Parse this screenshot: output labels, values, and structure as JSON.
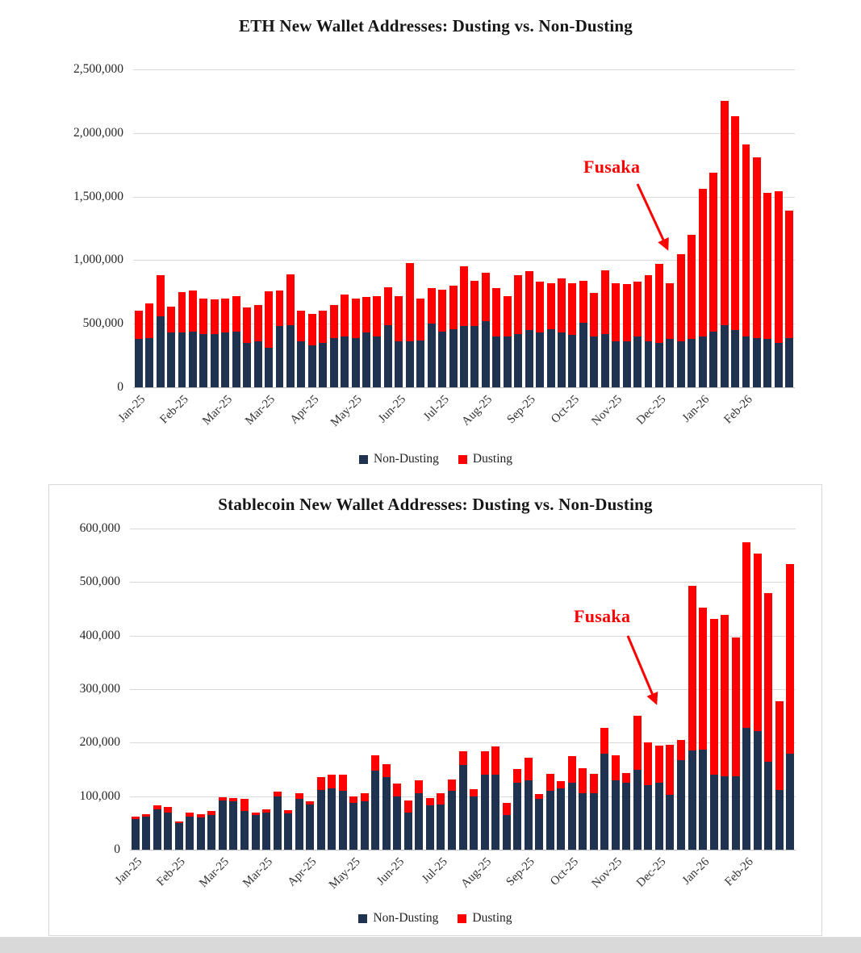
{
  "page": {
    "background": "#ffffff"
  },
  "chart_data": [
    {
      "type": "bar",
      "stacked": true,
      "title": "ETH New Wallet Addresses: Dusting vs. Non-Dusting",
      "ylim": [
        0,
        2500000
      ],
      "grid": true,
      "legend_position": "bottom",
      "ytick_labels": [
        "0",
        "500,000",
        "1,000,000",
        "1,500,000",
        "2,000,000",
        "2,500,000"
      ],
      "xtick_every": 4,
      "xtick_labels": [
        "Jan-25",
        "Feb-25",
        "Mar-25",
        "Mar-25",
        "Apr-25",
        "May-25",
        "Jun-25",
        "Jul-25",
        "Aug-25",
        "Sep-25",
        "Oct-25",
        "Nov-25",
        "Dec-25",
        "Jan-26",
        "Feb-26"
      ],
      "annotation": {
        "text": "Fusaka",
        "color": "#fe0000"
      },
      "legend": [
        {
          "label": "Non-Dusting",
          "color": "#1f3250"
        },
        {
          "label": "Dusting",
          "color": "#fe0000"
        }
      ],
      "series": [
        {
          "name": "Non-Dusting",
          "color": "#1f3250",
          "values": [
            380000,
            390000,
            560000,
            430000,
            430000,
            440000,
            420000,
            420000,
            430000,
            440000,
            350000,
            360000,
            310000,
            480000,
            490000,
            360000,
            330000,
            350000,
            390000,
            400000,
            390000,
            430000,
            400000,
            490000,
            360000,
            360000,
            370000,
            500000,
            440000,
            460000,
            480000,
            480000,
            520000,
            400000,
            400000,
            420000,
            450000,
            430000,
            460000,
            430000,
            410000,
            510000,
            400000,
            420000,
            360000,
            360000,
            400000,
            360000,
            350000,
            380000,
            360000,
            380000,
            400000,
            440000,
            490000,
            450000,
            400000,
            390000,
            380000,
            350000,
            390000
          ]
        },
        {
          "name": "Dusting",
          "color": "#fe0000",
          "values": [
            220000,
            270000,
            320000,
            205000,
            320000,
            320000,
            280000,
            270000,
            270000,
            275000,
            280000,
            290000,
            445000,
            280000,
            400000,
            240000,
            250000,
            250000,
            255000,
            330000,
            310000,
            280000,
            320000,
            300000,
            360000,
            620000,
            330000,
            280000,
            330000,
            340000,
            475000,
            360000,
            380000,
            380000,
            320000,
            465000,
            465000,
            400000,
            360000,
            425000,
            410000,
            330000,
            345000,
            500000,
            460000,
            455000,
            430000,
            520000,
            620000,
            440000,
            690000,
            820000,
            1160000,
            1250000,
            1760000,
            1680000,
            1510000,
            1420000,
            1150000,
            1190000,
            1000000
          ]
        }
      ]
    },
    {
      "type": "bar",
      "stacked": true,
      "title": "Stablecoin New Wallet Addresses: Dusting vs. Non-Dusting",
      "ylim": [
        0,
        600000
      ],
      "grid": true,
      "legend_position": "bottom",
      "ytick_labels": [
        "0",
        "100,000",
        "200,000",
        "300,000",
        "400,000",
        "500,000",
        "600,000"
      ],
      "xtick_every": 4,
      "xtick_labels": [
        "Jan-25",
        "Feb-25",
        "Mar-25",
        "Mar-25",
        "Apr-25",
        "May-25",
        "Jun-25",
        "Jul-25",
        "Aug-25",
        "Sep-25",
        "Oct-25",
        "Nov-25",
        "Dec-25",
        "Jan-26",
        "Feb-26"
      ],
      "annotation": {
        "text": "Fusaka",
        "color": "#fe0000"
      },
      "legend": [
        {
          "label": "Non-Dusting",
          "color": "#1f3250"
        },
        {
          "label": "Dusting",
          "color": "#fe0000"
        }
      ],
      "series": [
        {
          "name": "Non-Dusting",
          "color": "#1f3250",
          "values": [
            58000,
            62000,
            75000,
            70000,
            50000,
            62000,
            60000,
            65000,
            92000,
            90000,
            72000,
            65000,
            70000,
            100000,
            68000,
            95000,
            85000,
            112000,
            115000,
            110000,
            88000,
            90000,
            148000,
            135000,
            100000,
            70000,
            105000,
            83000,
            85000,
            110000,
            158000,
            100000,
            140000,
            140000,
            65000,
            125000,
            130000,
            95000,
            110000,
            115000,
            125000,
            105000,
            105000,
            180000,
            130000,
            125000,
            150000,
            120000,
            125000,
            103000,
            168000,
            185000,
            187000,
            140000,
            137000,
            137000,
            228000,
            222000,
            165000,
            112000,
            180000
          ]
        },
        {
          "name": "Dusting",
          "color": "#fe0000",
          "values": [
            4000,
            4000,
            8000,
            10000,
            3000,
            8000,
            6000,
            7000,
            6000,
            7000,
            23000,
            5000,
            6000,
            8000,
            6000,
            10000,
            6000,
            24000,
            25000,
            30000,
            12000,
            16000,
            28000,
            25000,
            23000,
            22000,
            24000,
            13000,
            20000,
            21000,
            26000,
            13000,
            44000,
            53000,
            23000,
            26000,
            42000,
            9000,
            31000,
            13000,
            50000,
            47000,
            36000,
            47000,
            46000,
            18000,
            100000,
            81000,
            69000,
            93000,
            37000,
            308000,
            266000,
            291000,
            301000,
            260000,
            347000,
            331000,
            315000,
            166000,
            353000
          ]
        }
      ]
    }
  ]
}
